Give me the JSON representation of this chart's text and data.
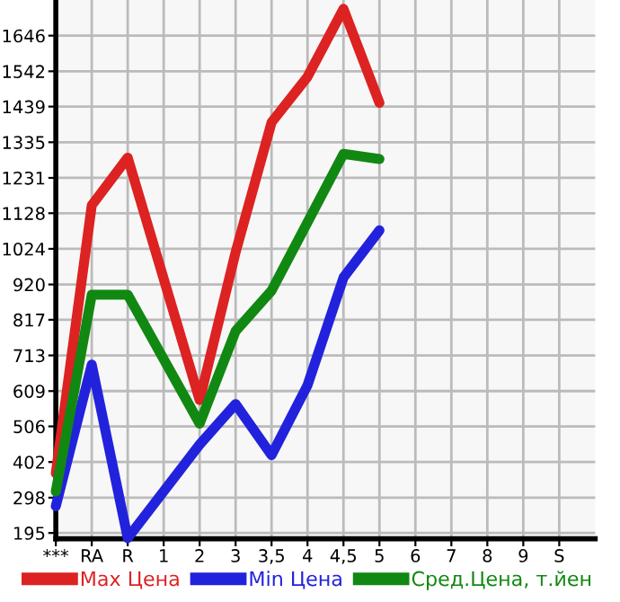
{
  "chart_data": {
    "type": "line",
    "categories": [
      "***",
      "RA",
      "R",
      "1",
      "2",
      "3",
      "3,5",
      "4",
      "4,5",
      "5",
      "6",
      "7",
      "8",
      "9",
      "S"
    ],
    "series": [
      {
        "name": "Max Цена",
        "color": "#dd2222",
        "values": [
          369,
          1151,
          1290,
          null,
          583,
          1014,
          1393,
          1526,
          1724,
          1450,
          null,
          null,
          null,
          null,
          null
        ]
      },
      {
        "name": "Min Цена",
        "color": "#2222dd",
        "values": [
          273,
          686,
          180,
          null,
          453,
          571,
          422,
          626,
          940,
          1078,
          null,
          null,
          null,
          null,
          null
        ]
      },
      {
        "name": "Сред.Цена, т.йен",
        "color": "#118811",
        "values": [
          316,
          890,
          890,
          null,
          514,
          784,
          902,
          null,
          1301,
          1286,
          null,
          null,
          null,
          null,
          null
        ]
      }
    ],
    "ylim": [
      178,
      1750
    ],
    "yticks": [
      195,
      298,
      402,
      506,
      609,
      713,
      817,
      920,
      1024,
      1128,
      1231,
      1335,
      1439,
      1542,
      1646
    ],
    "grid": true,
    "legend": "bottom",
    "marker": "none",
    "line_style": "solid"
  }
}
